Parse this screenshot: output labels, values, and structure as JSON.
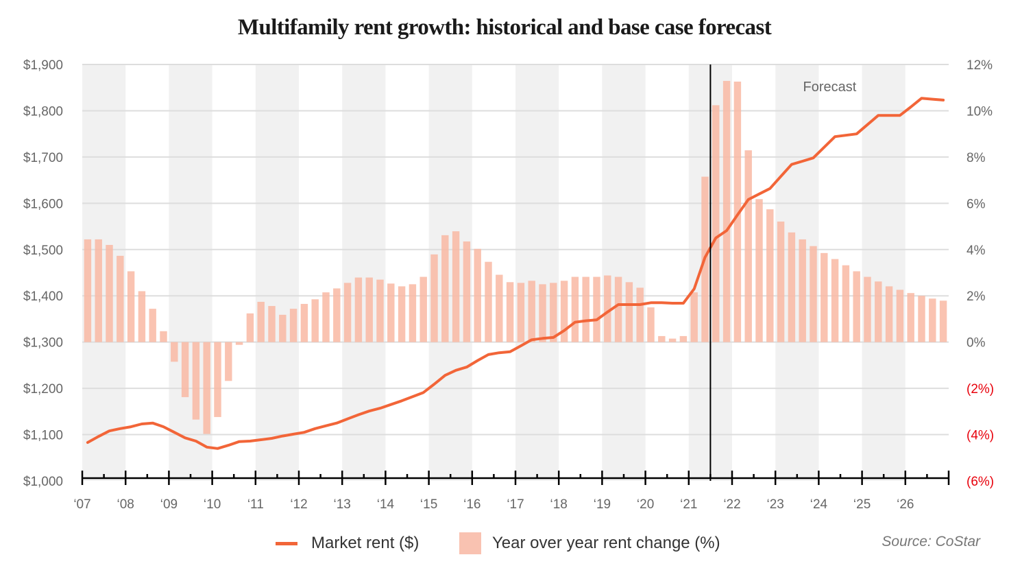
{
  "title": "Multifamily rent growth: historical and base case forecast",
  "source": "Source: CoStar",
  "legend": {
    "line_label": "Market rent ($)",
    "bar_label": "Year over year rent change (%)"
  },
  "colors": {
    "line": "#f26538",
    "bar": "#f9b8a3",
    "band": "#f1f1f1",
    "negative_tick": "#e8000b"
  },
  "chart_data": {
    "type": "bar+line",
    "title": "Multifamily rent growth: historical and base case forecast",
    "x_ticks": [
      "‘07",
      "‘08",
      "‘09",
      "‘10",
      "‘11",
      "‘12",
      "‘13",
      "‘14",
      "‘15",
      "‘16",
      "‘17",
      "‘18",
      "‘19",
      "‘20",
      "‘21",
      "‘22",
      "‘23",
      "‘24",
      "‘25",
      "‘26"
    ],
    "x_range": [
      2007,
      2027
    ],
    "periods_per_year": 4,
    "left_axis": {
      "label": "Market rent ($)",
      "range": [
        1000,
        1900
      ],
      "ticks": [
        1000,
        1100,
        1200,
        1300,
        1400,
        1500,
        1600,
        1700,
        1800,
        1900
      ],
      "tick_labels": [
        "$1,000",
        "$1,100",
        "$1,200",
        "$1,300",
        "$1,400",
        "$1,500",
        "$1,600",
        "$1,700",
        "$1,800",
        "$1,900"
      ]
    },
    "right_axis": {
      "label": "Year over year rent change (%)",
      "range": [
        -6,
        12
      ],
      "ticks": [
        -6,
        -4,
        -2,
        0,
        2,
        4,
        6,
        8,
        10,
        12
      ],
      "tick_labels": [
        "(6%)",
        "(4%)",
        "(2%)",
        "0%",
        "2%",
        "4%",
        "6%",
        "8%",
        "10%",
        "12%"
      ]
    },
    "grid": true,
    "shaded_years": [
      2007,
      2009,
      2011,
      2013,
      2015,
      2017,
      2019,
      2021,
      2023,
      2025
    ],
    "forecast_start": 2021.5,
    "annotation": "Forecast",
    "legend_position": "bottom",
    "series": [
      {
        "name": "Market rent ($)",
        "type": "line",
        "axis": "left",
        "values": [
          1083,
          1096,
          1108,
          1113,
          1117,
          1123,
          1125,
          1117,
          1105,
          1093,
          1086,
          1073,
          1070,
          1077,
          1085,
          1086,
          1089,
          1092,
          1097,
          1101,
          1105,
          1113,
          1119,
          1125,
          1134,
          1143,
          1151,
          1157,
          1165,
          1173,
          1182,
          1191,
          1209,
          1228,
          1239,
          1246,
          1260,
          1273,
          1277,
          1279,
          1292,
          1305,
          1308,
          1310,
          1325,
          1343,
          1346,
          1348,
          1365,
          1381,
          1381,
          1381,
          1385,
          1385,
          1384,
          1384,
          1415,
          1483,
          1525,
          1541,
          1575,
          1608,
          1620,
          1632,
          1658,
          1684,
          1691,
          1698,
          1721,
          1744,
          1747,
          1750,
          1770,
          1790,
          1790,
          1790,
          1808,
          1827,
          1825,
          1823
        ]
      },
      {
        "name": "Year over year rent change (%)",
        "type": "bar",
        "axis": "right",
        "values": [
          4.44,
          4.44,
          4.2,
          3.73,
          3.06,
          2.2,
          1.44,
          0.47,
          -0.85,
          -2.38,
          -3.35,
          -3.97,
          -3.24,
          -1.68,
          -0.12,
          1.24,
          1.74,
          1.56,
          1.18,
          1.44,
          1.65,
          1.85,
          2.15,
          2.32,
          2.56,
          2.79,
          2.79,
          2.7,
          2.53,
          2.41,
          2.5,
          2.82,
          3.79,
          4.62,
          4.79,
          4.35,
          4.03,
          3.47,
          2.91,
          2.59,
          2.56,
          2.65,
          2.5,
          2.56,
          2.65,
          2.82,
          2.82,
          2.82,
          2.88,
          2.82,
          2.59,
          2.35,
          1.5,
          0.26,
          0.15,
          0.26,
          2.15,
          7.15,
          10.24,
          11.29,
          11.26,
          8.29,
          6.18,
          5.74,
          5.21,
          4.74,
          4.44,
          4.15,
          3.85,
          3.59,
          3.32,
          3.06,
          2.82,
          2.62,
          2.41,
          2.26,
          2.12,
          2.0,
          1.88,
          1.79
        ]
      }
    ]
  }
}
